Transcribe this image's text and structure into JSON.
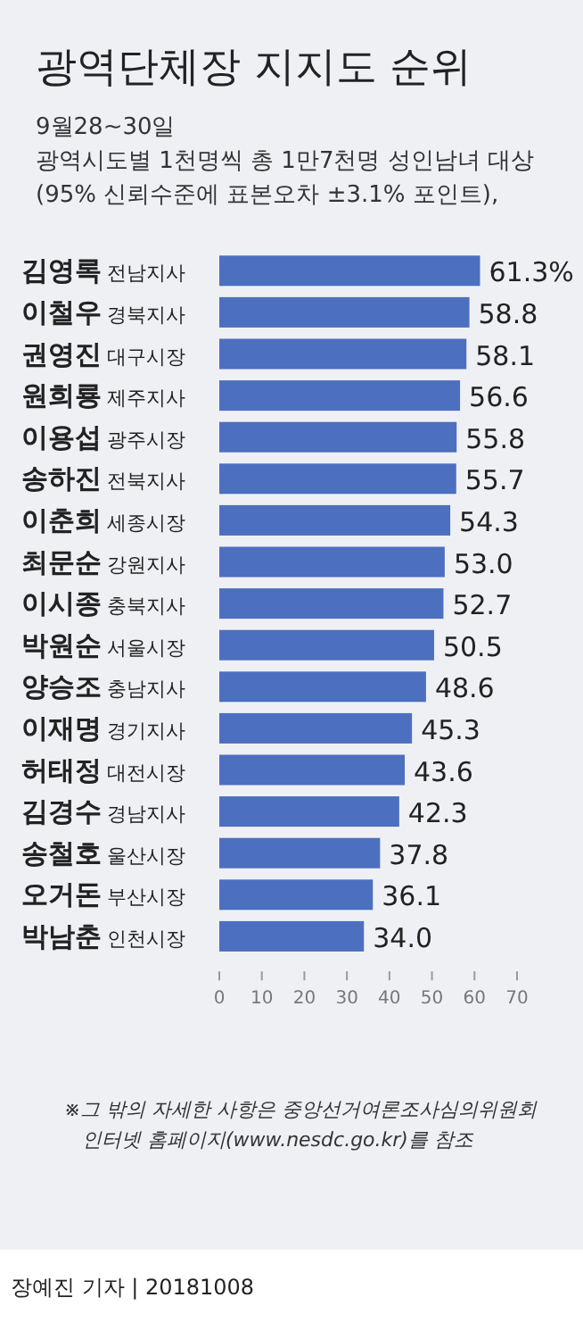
{
  "chart_data": {
    "type": "bar",
    "orientation": "horizontal",
    "title": "광역단체장 지지도 순위",
    "subtitle": [
      "9월28~30일",
      "광역시도별 1천명씩 총 1만7천명 성인남녀 대상",
      "(95% 신뢰수준에 표본오차 ±3.1% 포인트),"
    ],
    "categories": [
      "김영록 전남지사",
      "이철우 경북지사",
      "권영진 대구시장",
      "원희룡 제주지사",
      "이용섭 광주시장",
      "송하진 전북지사",
      "이춘희 세종시장",
      "최문순 강원지사",
      "이시종 충북지사",
      "박원순 서울시장",
      "양승조 충남지사",
      "이재명 경기지사",
      "허태정 대전시장",
      "김경수 경남지사",
      "송철호 울산시장",
      "오거돈 부산시장",
      "박남춘 인천시장"
    ],
    "values": [
      61.3,
      58.8,
      58.1,
      56.6,
      55.8,
      55.7,
      54.3,
      53.0,
      52.7,
      50.5,
      48.6,
      45.3,
      43.6,
      42.3,
      37.8,
      36.1,
      34.0
    ],
    "value_labels": [
      "61.3%",
      "58.8",
      "58.1",
      "56.6",
      "55.8",
      "55.7",
      "54.3",
      "53.0",
      "52.7",
      "50.5",
      "48.6",
      "45.3",
      "43.6",
      "42.3",
      "37.8",
      "36.1",
      "34.0"
    ],
    "color": "#4d6fbf",
    "xlim": [
      0,
      70
    ],
    "xticks": [
      0,
      10,
      20,
      30,
      40,
      50,
      60,
      70
    ],
    "annotations": [
      "※그 밖의 자세한 사항은 중앙선거여론조사심의위원회",
      "인터넷 홈페이지(www.nesdc.go.kr)를 참조",
      "장예진 기자 | 20181008"
    ]
  }
}
